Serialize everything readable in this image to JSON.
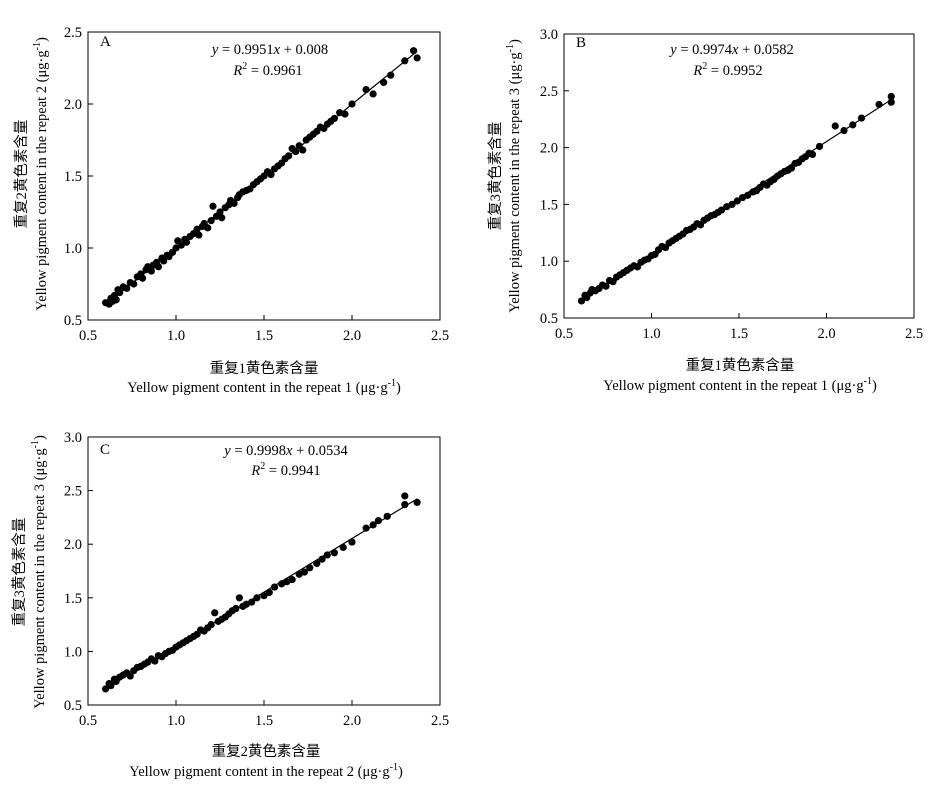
{
  "charts": [
    {
      "id": "A",
      "panel_label": "A",
      "equation": {
        "y_var": "y",
        "rest": " = 0.9951",
        "x_var": "x",
        "tail": " + 0.008"
      },
      "r2": {
        "r": "R",
        "sup": "2",
        "rest": " = 0.9961"
      },
      "xlabel_cn": "重复1黄色素含量",
      "xlabel_en": {
        "text": "Yellow pigment content in  the repeat 1 (μg·g",
        "sup": "-1",
        "close": ")"
      },
      "ylabel_cn": "重复2黄色素含量",
      "ylabel_en": {
        "text": "Yellow pigment content in  the repeat 2 (μg·g",
        "sup": "-1",
        "close": ")"
      },
      "x_ticks": [
        "0.5",
        "1.0",
        "1.5",
        "2.0",
        "2.5"
      ],
      "y_ticks": [
        "0.5",
        "1.0",
        "1.5",
        "2.0",
        "2.5"
      ]
    },
    {
      "id": "B",
      "panel_label": "B",
      "equation": {
        "y_var": "y",
        "rest": " = 0.9974",
        "x_var": "x",
        "tail": " + 0.0582"
      },
      "r2": {
        "r": "R",
        "sup": "2",
        "rest": " = 0.9952"
      },
      "xlabel_cn": "重复1黄色素含量",
      "xlabel_en": {
        "text": "Yellow pigment content in  the repeat 1 (μg·g",
        "sup": "-1",
        "close": ")"
      },
      "ylabel_cn": "重复3黄色素含量",
      "ylabel_en": {
        "text": "Yellow pigment content in  the repeat 3 (μg·g",
        "sup": "-1",
        "close": ")"
      },
      "x_ticks": [
        "0.5",
        "1.0",
        "1.5",
        "2.0",
        "2.5"
      ],
      "y_ticks": [
        "0.5",
        "1.0",
        "1.5",
        "2.0",
        "2.5",
        "3.0"
      ]
    },
    {
      "id": "C",
      "panel_label": "C",
      "equation": {
        "y_var": "y",
        "rest": " = 0.9998",
        "x_var": "x",
        "tail": " + 0.0534"
      },
      "r2": {
        "r": "R",
        "sup": "2",
        "rest": " = 0.9941"
      },
      "xlabel_cn": "重复2黄色素含量",
      "xlabel_en": {
        "text": "Yellow pigment content in  the repeat 2 (μg·g",
        "sup": "-1",
        "close": ")"
      },
      "ylabel_cn": "重复3黄色素含量",
      "ylabel_en": {
        "text": "Yellow pigment content in  the repeat 3 (μg·g",
        "sup": "-1",
        "close": ")"
      },
      "x_ticks": [
        "0.5",
        "1.0",
        "1.5",
        "2.0",
        "2.5"
      ],
      "y_ticks": [
        "0.5",
        "1.0",
        "1.5",
        "2.0",
        "2.5",
        "3.0"
      ]
    }
  ],
  "chart_data": [
    {
      "type": "scatter",
      "panel": "A",
      "xlim": [
        0.5,
        2.5
      ],
      "ylim": [
        0.5,
        2.5
      ],
      "fit": {
        "slope": 0.9951,
        "intercept": 0.008,
        "r2": 0.9961,
        "x_range": [
          0.6,
          2.37
        ]
      },
      "x": [
        0.6,
        0.62,
        0.63,
        0.64,
        0.65,
        0.66,
        0.67,
        0.68,
        0.7,
        0.72,
        0.74,
        0.76,
        0.78,
        0.8,
        0.81,
        0.83,
        0.84,
        0.86,
        0.87,
        0.89,
        0.9,
        0.92,
        0.93,
        0.95,
        0.96,
        0.98,
        1.0,
        1.01,
        1.03,
        1.05,
        1.06,
        1.08,
        1.1,
        1.12,
        1.13,
        1.15,
        1.16,
        1.18,
        1.2,
        1.21,
        1.23,
        1.25,
        1.26,
        1.28,
        1.3,
        1.31,
        1.33,
        1.35,
        1.36,
        1.38,
        1.4,
        1.42,
        1.44,
        1.46,
        1.48,
        1.5,
        1.52,
        1.54,
        1.56,
        1.58,
        1.6,
        1.62,
        1.64,
        1.66,
        1.68,
        1.7,
        1.72,
        1.74,
        1.76,
        1.78,
        1.8,
        1.82,
        1.84,
        1.86,
        1.88,
        1.9,
        1.93,
        1.96,
        2.0,
        2.08,
        2.12,
        2.18,
        2.22,
        2.3,
        2.35,
        2.37
      ],
      "y": [
        0.62,
        0.61,
        0.65,
        0.63,
        0.67,
        0.64,
        0.71,
        0.69,
        0.73,
        0.72,
        0.76,
        0.75,
        0.8,
        0.82,
        0.79,
        0.85,
        0.87,
        0.84,
        0.88,
        0.9,
        0.87,
        0.93,
        0.91,
        0.95,
        0.94,
        0.97,
        1.0,
        1.05,
        1.02,
        1.06,
        1.04,
        1.08,
        1.1,
        1.13,
        1.09,
        1.15,
        1.17,
        1.14,
        1.19,
        1.29,
        1.22,
        1.25,
        1.21,
        1.28,
        1.3,
        1.33,
        1.31,
        1.35,
        1.37,
        1.39,
        1.4,
        1.41,
        1.44,
        1.46,
        1.48,
        1.5,
        1.53,
        1.51,
        1.55,
        1.57,
        1.59,
        1.62,
        1.64,
        1.69,
        1.67,
        1.71,
        1.68,
        1.75,
        1.77,
        1.79,
        1.81,
        1.84,
        1.83,
        1.86,
        1.88,
        1.9,
        1.94,
        1.93,
        2.0,
        2.1,
        2.07,
        2.15,
        2.2,
        2.3,
        2.37,
        2.32
      ]
    },
    {
      "type": "scatter",
      "panel": "B",
      "xlim": [
        0.5,
        2.5
      ],
      "ylim": [
        0.5,
        3.0
      ],
      "fit": {
        "slope": 0.9974,
        "intercept": 0.0582,
        "r2": 0.9952,
        "x_range": [
          0.6,
          2.37
        ]
      },
      "x": [
        0.6,
        0.62,
        0.63,
        0.65,
        0.66,
        0.68,
        0.7,
        0.72,
        0.74,
        0.76,
        0.78,
        0.8,
        0.82,
        0.84,
        0.86,
        0.88,
        0.9,
        0.92,
        0.94,
        0.96,
        0.98,
        1.0,
        1.02,
        1.04,
        1.06,
        1.08,
        1.1,
        1.12,
        1.14,
        1.16,
        1.18,
        1.2,
        1.22,
        1.24,
        1.26,
        1.28,
        1.3,
        1.32,
        1.34,
        1.36,
        1.38,
        1.4,
        1.43,
        1.46,
        1.49,
        1.52,
        1.55,
        1.58,
        1.6,
        1.62,
        1.64,
        1.66,
        1.68,
        1.7,
        1.72,
        1.74,
        1.76,
        1.78,
        1.8,
        1.82,
        1.84,
        1.86,
        1.88,
        1.9,
        1.92,
        1.96,
        2.05,
        2.1,
        2.15,
        2.2,
        2.3,
        2.37,
        2.37
      ],
      "y": [
        0.65,
        0.7,
        0.68,
        0.72,
        0.75,
        0.74,
        0.76,
        0.79,
        0.78,
        0.83,
        0.82,
        0.86,
        0.88,
        0.9,
        0.92,
        0.94,
        0.96,
        0.95,
        0.99,
        1.01,
        1.02,
        1.05,
        1.06,
        1.1,
        1.13,
        1.12,
        1.16,
        1.18,
        1.2,
        1.22,
        1.24,
        1.27,
        1.28,
        1.3,
        1.33,
        1.32,
        1.36,
        1.38,
        1.4,
        1.41,
        1.43,
        1.45,
        1.48,
        1.5,
        1.53,
        1.56,
        1.58,
        1.61,
        1.62,
        1.65,
        1.68,
        1.67,
        1.7,
        1.72,
        1.75,
        1.77,
        1.79,
        1.8,
        1.82,
        1.86,
        1.87,
        1.9,
        1.92,
        1.95,
        1.94,
        2.01,
        2.19,
        2.15,
        2.2,
        2.26,
        2.38,
        2.4,
        2.45
      ]
    },
    {
      "type": "scatter",
      "panel": "C",
      "xlim": [
        0.5,
        2.5
      ],
      "ylim": [
        0.5,
        3.0
      ],
      "fit": {
        "slope": 0.9998,
        "intercept": 0.0534,
        "r2": 0.9941,
        "x_range": [
          0.6,
          2.37
        ]
      },
      "x": [
        0.6,
        0.62,
        0.63,
        0.65,
        0.66,
        0.68,
        0.7,
        0.72,
        0.74,
        0.76,
        0.78,
        0.8,
        0.82,
        0.84,
        0.86,
        0.88,
        0.9,
        0.92,
        0.94,
        0.96,
        0.98,
        1.0,
        1.02,
        1.04,
        1.06,
        1.08,
        1.1,
        1.12,
        1.14,
        1.16,
        1.18,
        1.2,
        1.22,
        1.24,
        1.26,
        1.28,
        1.3,
        1.32,
        1.34,
        1.36,
        1.38,
        1.4,
        1.43,
        1.46,
        1.5,
        1.53,
        1.56,
        1.6,
        1.63,
        1.66,
        1.7,
        1.73,
        1.76,
        1.8,
        1.83,
        1.86,
        1.9,
        1.95,
        2.0,
        2.08,
        2.12,
        2.15,
        2.2,
        2.3,
        2.3,
        2.37
      ],
      "y": [
        0.65,
        0.7,
        0.68,
        0.74,
        0.72,
        0.76,
        0.78,
        0.8,
        0.77,
        0.82,
        0.85,
        0.86,
        0.88,
        0.9,
        0.93,
        0.91,
        0.96,
        0.95,
        0.98,
        1.0,
        1.01,
        1.04,
        1.06,
        1.08,
        1.1,
        1.12,
        1.14,
        1.16,
        1.2,
        1.19,
        1.22,
        1.25,
        1.36,
        1.28,
        1.3,
        1.32,
        1.35,
        1.38,
        1.4,
        1.5,
        1.42,
        1.44,
        1.46,
        1.5,
        1.52,
        1.55,
        1.6,
        1.63,
        1.65,
        1.67,
        1.72,
        1.74,
        1.78,
        1.82,
        1.86,
        1.9,
        1.92,
        1.97,
        2.02,
        2.15,
        2.18,
        2.22,
        2.26,
        2.37,
        2.45,
        2.39
      ]
    }
  ]
}
